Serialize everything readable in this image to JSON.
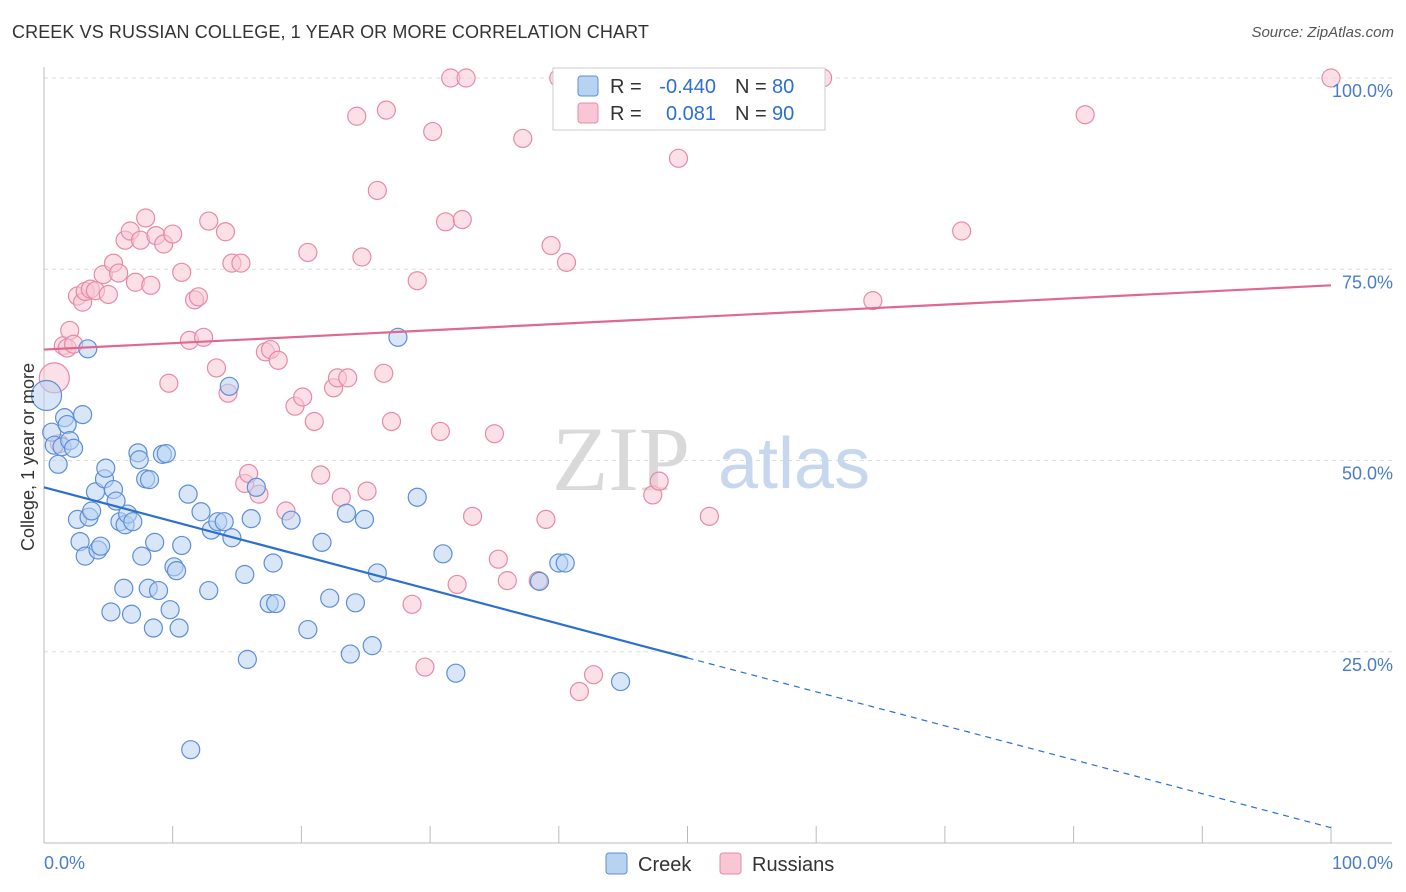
{
  "title": "CREEK VS RUSSIAN COLLEGE, 1 YEAR OR MORE CORRELATION CHART",
  "source": "Source: ZipAtlas.com",
  "watermark": {
    "zip": "ZIP",
    "atlas": "atlas"
  },
  "colors": {
    "creek_fill": "#b8d2f2",
    "creek_stroke": "#5d8fd6",
    "creek_line": "#2c6fcf",
    "russian_fill": "#f8c6d5",
    "russian_stroke": "#e78aa8",
    "russian_line": "#e0688f",
    "grid": "#dddddd",
    "tick_text": "#4a7cc9"
  },
  "legend_box": {
    "rows": [
      {
        "r_label": "R =",
        "r_value": "-0.440",
        "n_label": "N =",
        "n_value": "80",
        "series": "creek"
      },
      {
        "r_label": "R =",
        "r_value": "0.081",
        "n_label": "N =",
        "n_value": "90",
        "series": "russian"
      }
    ]
  },
  "bottom_legend": [
    {
      "label": "Creek",
      "series": "creek"
    },
    {
      "label": "Russians",
      "series": "russian"
    }
  ],
  "chart_data": {
    "type": "scatter",
    "title": "CREEK VS RUSSIAN COLLEGE, 1 YEAR OR MORE CORRELATION CHART",
    "xlabel": "",
    "ylabel": "College, 1 year or more",
    "xlim": [
      0,
      100
    ],
    "ylim": [
      0,
      100
    ],
    "x_tick_labels": [
      "0.0%",
      "100.0%"
    ],
    "y_ticks": [
      25,
      50,
      75,
      100
    ],
    "y_tick_labels": [
      "25.0%",
      "50.0%",
      "75.0%",
      "100.0%"
    ],
    "grid": true,
    "legend_position": "top-center",
    "series": [
      {
        "name": "Creek",
        "key": "creek",
        "r": -0.44,
        "n": 80,
        "trend": {
          "x0": 0,
          "y0": 46.5,
          "x1": 50,
          "y1": 24.2,
          "dashed_to_x": 100,
          "dashed_to_y": 2.0
        },
        "points": [
          [
            0.2,
            58.5
          ],
          [
            0.6,
            53.7
          ],
          [
            0.8,
            52.0
          ],
          [
            1.1,
            49.5
          ],
          [
            1.4,
            51.8
          ],
          [
            1.6,
            55.6
          ],
          [
            1.8,
            54.7
          ],
          [
            2.0,
            52.6
          ],
          [
            2.3,
            51.6
          ],
          [
            2.6,
            42.3
          ],
          [
            2.8,
            39.4
          ],
          [
            3.0,
            56.0
          ],
          [
            3.2,
            37.5
          ],
          [
            3.4,
            64.6
          ],
          [
            3.5,
            42.6
          ],
          [
            3.7,
            43.4
          ],
          [
            4.0,
            45.9
          ],
          [
            4.2,
            38.3
          ],
          [
            4.4,
            38.8
          ],
          [
            4.7,
            47.6
          ],
          [
            4.8,
            49.0
          ],
          [
            5.2,
            30.2
          ],
          [
            5.4,
            46.2
          ],
          [
            5.6,
            44.7
          ],
          [
            5.9,
            42.0
          ],
          [
            6.2,
            33.3
          ],
          [
            6.3,
            41.6
          ],
          [
            6.5,
            43.0
          ],
          [
            6.8,
            29.9
          ],
          [
            6.9,
            42.0
          ],
          [
            7.3,
            51.0
          ],
          [
            7.4,
            50.1
          ],
          [
            7.6,
            37.5
          ],
          [
            7.9,
            47.6
          ],
          [
            8.1,
            33.3
          ],
          [
            8.2,
            47.5
          ],
          [
            8.5,
            28.1
          ],
          [
            8.6,
            39.3
          ],
          [
            8.9,
            33.0
          ],
          [
            9.2,
            50.8
          ],
          [
            9.5,
            50.9
          ],
          [
            9.8,
            30.5
          ],
          [
            10.1,
            36.1
          ],
          [
            10.3,
            35.6
          ],
          [
            10.5,
            28.1
          ],
          [
            10.7,
            38.9
          ],
          [
            11.2,
            45.6
          ],
          [
            11.4,
            12.2
          ],
          [
            12.2,
            43.3
          ],
          [
            12.8,
            33.0
          ],
          [
            13.0,
            40.9
          ],
          [
            13.5,
            42.0
          ],
          [
            14.0,
            42.0
          ],
          [
            14.4,
            59.7
          ],
          [
            14.6,
            39.9
          ],
          [
            15.6,
            35.1
          ],
          [
            15.8,
            24.0
          ],
          [
            16.1,
            42.4
          ],
          [
            16.5,
            46.5
          ],
          [
            17.5,
            31.3
          ],
          [
            17.8,
            36.6
          ],
          [
            18.0,
            31.3
          ],
          [
            19.2,
            42.2
          ],
          [
            20.5,
            27.9
          ],
          [
            21.6,
            39.3
          ],
          [
            22.2,
            32.0
          ],
          [
            23.5,
            43.1
          ],
          [
            23.8,
            24.7
          ],
          [
            24.2,
            31.4
          ],
          [
            24.9,
            42.3
          ],
          [
            25.5,
            25.8
          ],
          [
            25.9,
            35.3
          ],
          [
            27.5,
            66.1
          ],
          [
            29.0,
            45.2
          ],
          [
            31.0,
            37.8
          ],
          [
            32.0,
            22.2
          ],
          [
            38.5,
            34.2
          ],
          [
            40.0,
            36.6
          ],
          [
            44.8,
            21.1
          ],
          [
            40.5,
            36.6
          ]
        ]
      },
      {
        "name": "Russians",
        "key": "russian",
        "r": 0.081,
        "n": 90,
        "trend": {
          "x0": 0,
          "y0": 64.5,
          "x1": 100,
          "y1": 72.9
        },
        "points": [
          [
            0.8,
            60.8
          ],
          [
            1.2,
            52.2
          ],
          [
            1.5,
            65.0
          ],
          [
            1.8,
            64.7
          ],
          [
            2.0,
            67.0
          ],
          [
            2.3,
            65.2
          ],
          [
            2.6,
            71.5
          ],
          [
            3.0,
            70.7
          ],
          [
            3.2,
            72.1
          ],
          [
            3.6,
            72.4
          ],
          [
            4.0,
            72.2
          ],
          [
            4.6,
            74.3
          ],
          [
            5.0,
            71.7
          ],
          [
            5.4,
            75.8
          ],
          [
            5.8,
            74.5
          ],
          [
            6.3,
            78.8
          ],
          [
            6.7,
            80.0
          ],
          [
            7.1,
            73.3
          ],
          [
            7.5,
            78.8
          ],
          [
            7.9,
            81.7
          ],
          [
            8.3,
            72.9
          ],
          [
            8.7,
            79.4
          ],
          [
            9.3,
            78.3
          ],
          [
            9.7,
            60.1
          ],
          [
            10.0,
            79.6
          ],
          [
            10.7,
            74.6
          ],
          [
            11.3,
            65.7
          ],
          [
            11.7,
            71.0
          ],
          [
            12.0,
            71.4
          ],
          [
            12.4,
            66.1
          ],
          [
            12.8,
            81.3
          ],
          [
            13.4,
            62.1
          ],
          [
            14.1,
            79.9
          ],
          [
            14.3,
            58.8
          ],
          [
            14.6,
            75.8
          ],
          [
            15.3,
            75.8
          ],
          [
            15.6,
            47.0
          ],
          [
            15.9,
            48.3
          ],
          [
            16.7,
            45.6
          ],
          [
            17.2,
            64.2
          ],
          [
            17.6,
            64.5
          ],
          [
            18.2,
            63.1
          ],
          [
            18.8,
            43.4
          ],
          [
            19.5,
            57.1
          ],
          [
            20.1,
            58.3
          ],
          [
            20.5,
            77.2
          ],
          [
            21.0,
            55.1
          ],
          [
            21.5,
            48.1
          ],
          [
            22.5,
            59.5
          ],
          [
            22.8,
            60.8
          ],
          [
            23.1,
            45.2
          ],
          [
            23.6,
            60.8
          ],
          [
            24.3,
            95.0
          ],
          [
            24.7,
            76.6
          ],
          [
            25.1,
            46.0
          ],
          [
            25.9,
            85.3
          ],
          [
            26.4,
            61.4
          ],
          [
            26.6,
            95.8
          ],
          [
            27.0,
            55.1
          ],
          [
            28.6,
            31.2
          ],
          [
            29.0,
            73.5
          ],
          [
            29.6,
            23.0
          ],
          [
            30.2,
            93.0
          ],
          [
            30.8,
            53.8
          ],
          [
            31.2,
            81.2
          ],
          [
            31.6,
            100.0
          ],
          [
            32.1,
            33.8
          ],
          [
            32.5,
            81.5
          ],
          [
            32.8,
            100.0
          ],
          [
            33.3,
            42.7
          ],
          [
            35.0,
            53.5
          ],
          [
            35.3,
            37.1
          ],
          [
            36.0,
            34.3
          ],
          [
            37.2,
            92.1
          ],
          [
            38.4,
            34.3
          ],
          [
            39.0,
            42.3
          ],
          [
            39.4,
            78.1
          ],
          [
            40.0,
            100.0
          ],
          [
            40.6,
            75.9
          ],
          [
            41.6,
            19.8
          ],
          [
            42.7,
            22.0
          ],
          [
            47.3,
            45.5
          ],
          [
            47.8,
            47.3
          ],
          [
            49.3,
            89.5
          ],
          [
            51.7,
            42.7
          ],
          [
            60.5,
            100.0
          ],
          [
            64.4,
            70.9
          ],
          [
            71.3,
            80.0
          ],
          [
            80.9,
            95.2
          ],
          [
            100.0,
            100.0
          ]
        ]
      }
    ]
  }
}
